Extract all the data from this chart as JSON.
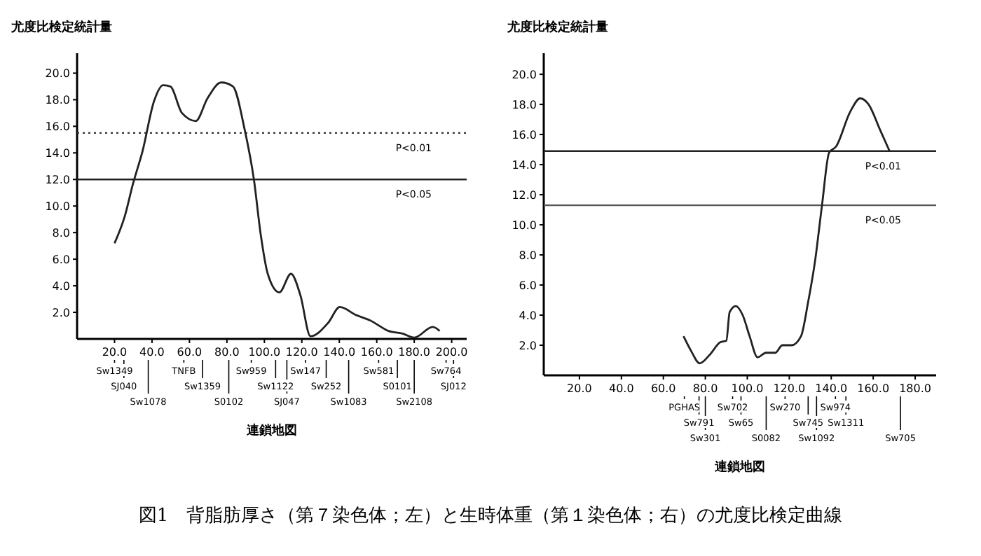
{
  "chart_data": [
    {
      "type": "line",
      "ylabel": "尤度比検定統計量",
      "xlabel": "連鎖地図",
      "xlim": [
        0,
        208
      ],
      "ylim": [
        0,
        21.5
      ],
      "xticks": [
        {
          "value": 20,
          "label": "20.0"
        },
        {
          "value": 40,
          "label": "40.0"
        },
        {
          "value": 60,
          "label": "60.0"
        },
        {
          "value": 80,
          "label": "80.0"
        },
        {
          "value": 100,
          "label": "100.0"
        },
        {
          "value": 120,
          "label": "120.0"
        },
        {
          "value": 140,
          "label": "140.0"
        },
        {
          "value": 160,
          "label": "160.0"
        },
        {
          "value": 180,
          "label": "180.0"
        },
        {
          "value": 200,
          "label": "200.0"
        }
      ],
      "yticks": [
        {
          "value": 2,
          "label": "2.0"
        },
        {
          "value": 4,
          "label": "4.0"
        },
        {
          "value": 6,
          "label": "6.0"
        },
        {
          "value": 8,
          "label": "8.0"
        },
        {
          "value": 10,
          "label": "10.0"
        },
        {
          "value": 12,
          "label": "12.0"
        },
        {
          "value": 14,
          "label": "14.0"
        },
        {
          "value": 16,
          "label": "16.0"
        },
        {
          "value": 18,
          "label": "18.0"
        },
        {
          "value": 20,
          "label": "20.0"
        }
      ],
      "series": [
        {
          "color": "#222222",
          "x": [
            20,
            25.4,
            29.9,
            34.9,
            41.1,
            46,
            49.8,
            56,
            63.4,
            69.6,
            77,
            83.2,
            89.4,
            94.4,
            98.1,
            101.8,
            108,
            114.2,
            119.2,
            124.6,
            134,
            140.3,
            148.9,
            156.4,
            166.3,
            173.8,
            180,
            189.9,
            193.6
          ],
          "values": [
            7.2,
            9.2,
            11.7,
            14.1,
            17.9,
            19.1,
            19,
            17,
            16.4,
            18.1,
            19.3,
            19,
            15.8,
            12,
            7.8,
            4.9,
            3.5,
            4.9,
            3.3,
            0.2,
            1.2,
            2.4,
            1.8,
            1.4,
            0.6,
            0.4,
            0.1,
            0.9,
            0.6
          ]
        }
      ],
      "ref_lines": [
        {
          "axis": "y",
          "value": 15.5,
          "label": "P<0.01",
          "color": "#333333",
          "line_style": "dotted"
        },
        {
          "axis": "y",
          "value": 12,
          "label": "P<0.05",
          "color": "#222222",
          "line_style": "solid"
        }
      ],
      "annotations": [
        "Sw1349",
        "SJ040",
        "Sw1078",
        "TNFB",
        "Sw1359",
        "S0102",
        "Sw959",
        "Sw1122",
        "SJ047",
        "Sw147",
        "Sw252",
        "Sw1083",
        "Sw581",
        "S0101",
        "Sw2108",
        "Sw764",
        "SJ012",
        "図1　背脂肪厚さ（第７染色体；左）と生時体重（第１染色体；右）の尤度比検定曲線"
      ]
    },
    {
      "type": "line",
      "ylabel": "尤度比検定統計量",
      "xlabel": "連鎖地図",
      "xlim": [
        3,
        190
      ],
      "ylim": [
        0,
        21.4
      ],
      "xticks": [
        {
          "value": 20,
          "label": "20.0"
        },
        {
          "value": 40,
          "label": "40.0"
        },
        {
          "value": 60,
          "label": "60.0"
        },
        {
          "value": 80,
          "label": "80.0"
        },
        {
          "value": 100,
          "label": "100.0"
        },
        {
          "value": 120,
          "label": "120.0"
        },
        {
          "value": 140,
          "label": "140.0"
        },
        {
          "value": 160,
          "label": "160.0"
        },
        {
          "value": 180,
          "label": "180.0"
        }
      ],
      "yticks": [
        {
          "value": 2,
          "label": "2.0"
        },
        {
          "value": 4,
          "label": "4.0"
        },
        {
          "value": 6,
          "label": "6.0"
        },
        {
          "value": 8,
          "label": "8.0"
        },
        {
          "value": 10,
          "label": "10.0"
        },
        {
          "value": 12,
          "label": "12.0"
        },
        {
          "value": 14,
          "label": "14.0"
        },
        {
          "value": 16,
          "label": "16.0"
        },
        {
          "value": 18,
          "label": "18.0"
        },
        {
          "value": 20,
          "label": "20.0"
        }
      ],
      "series": [
        {
          "color": "#222222",
          "x": [
            69.6,
            73.3,
            77.3,
            82.3,
            87.1,
            90,
            91.6,
            94.5,
            97.8,
            101.1,
            104.9,
            108.9,
            113.3,
            116.7,
            121.1,
            125.6,
            128.9,
            132.3,
            135.6,
            139,
            142.3,
            149,
            153.8,
            157.8,
            163.3,
            167.8
          ],
          "values": [
            2.6,
            1.6,
            0.8,
            1.4,
            2.2,
            2.3,
            4.2,
            4.6,
            4,
            2.6,
            1.2,
            1.5,
            1.5,
            2,
            2,
            2.6,
            4.8,
            7.6,
            11.3,
            14.8,
            15.2,
            17.5,
            18.4,
            18,
            16.3,
            14.9
          ]
        }
      ],
      "ref_lines": [
        {
          "axis": "y",
          "value": 14.9,
          "label": "P<0.01",
          "color": "#222222",
          "line_style": "solid"
        },
        {
          "axis": "y",
          "value": 11.3,
          "label": "P<0.05",
          "color": "#555555",
          "line_style": "solid"
        }
      ],
      "annotations": [
        "PGHAS",
        "Sw791",
        "Sw301",
        "Sw702",
        "Sw65",
        "S0082",
        "Sw270",
        "Sw745",
        "Sw1092",
        "Sw974",
        "Sw1311",
        "Sw705"
      ]
    }
  ]
}
